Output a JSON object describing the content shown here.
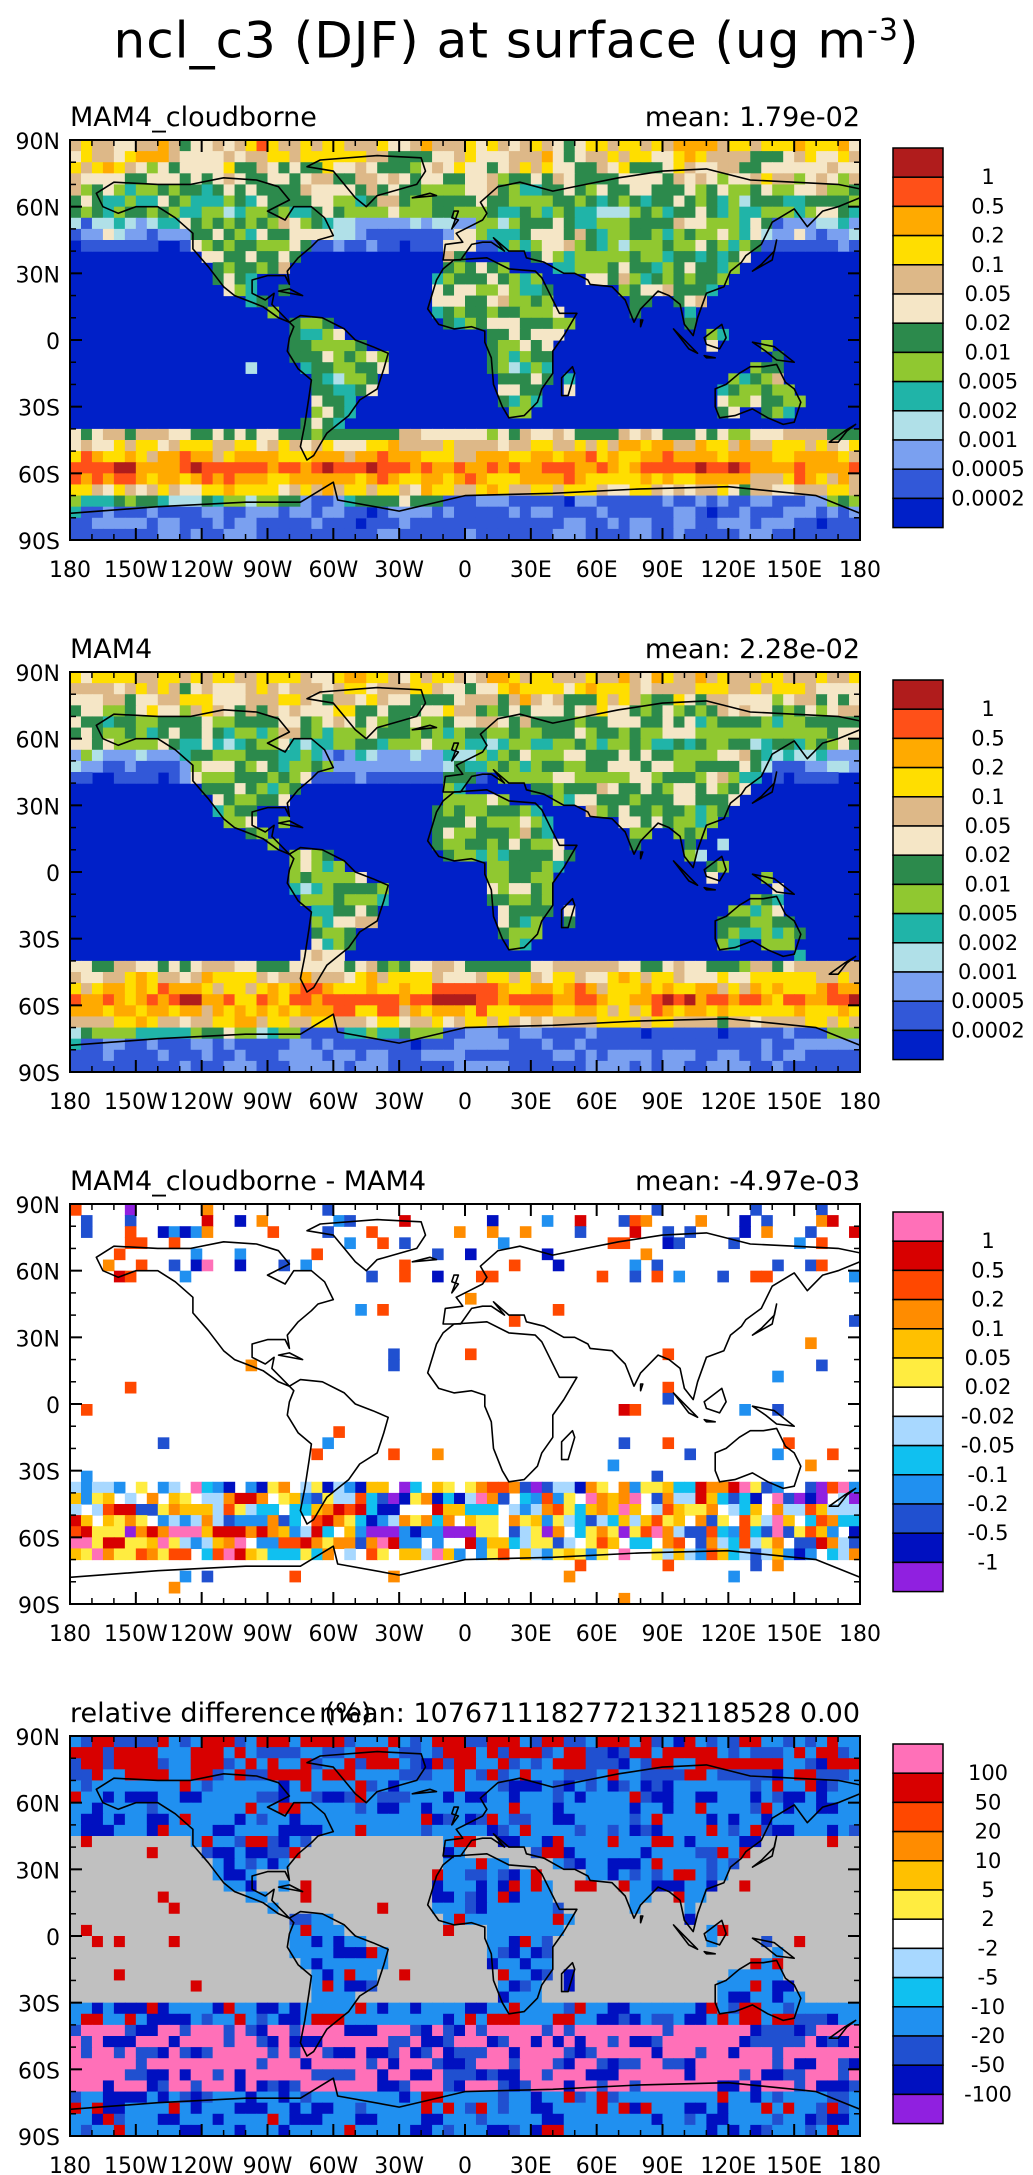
{
  "title": {
    "text": "ncl_c3 (DJF) at surface (ug m",
    "exponent": "-3",
    "close": ")"
  },
  "axes": {
    "lat_labels": [
      "90N",
      "60N",
      "30N",
      "0",
      "30S",
      "60S",
      "90S"
    ],
    "lon_labels": [
      "180",
      "150W",
      "120W",
      "90W",
      "60W",
      "30W",
      "0",
      "30E",
      "60E",
      "90E",
      "120E",
      "150E",
      "180"
    ]
  },
  "palettes": {
    "abs": [
      "#0020c8",
      "#3258d8",
      "#7aa0f0",
      "#b0e0e8",
      "#20b4a8",
      "#90c830",
      "#2c8a4c",
      "#f5e6c6",
      "#ddb888",
      "#ffde00",
      "#ffaa00",
      "#ff5018",
      "#b01c1c"
    ],
    "diff": [
      "#9020e0",
      "#0010c0",
      "#2050d0",
      "#2090f0",
      "#10c0f0",
      "#a8d8ff",
      "#ffffff",
      "#ffec40",
      "#ffc000",
      "#ff8c00",
      "#ff4800",
      "#d80000",
      "#ff70b8"
    ],
    "ocean_gray": "#c0c0c0"
  },
  "panels": [
    {
      "name": "MAM4_cloudborne",
      "mean": "mean: 1.79e-02",
      "type": "abs",
      "colorbar_labels": [
        "1",
        "0.5",
        "0.2",
        "0.1",
        "0.05",
        "0.02",
        "0.01",
        "0.005",
        "0.002",
        "0.001",
        "0.0005",
        "0.0002"
      ]
    },
    {
      "name": "MAM4",
      "mean": "mean: 2.28e-02",
      "type": "abs",
      "colorbar_labels": [
        "1",
        "0.5",
        "0.2",
        "0.1",
        "0.05",
        "0.02",
        "0.01",
        "0.005",
        "0.002",
        "0.001",
        "0.0005",
        "0.0002"
      ]
    },
    {
      "name": "MAM4_cloudborne - MAM4",
      "mean": "mean: -4.97e-03",
      "type": "diff",
      "colorbar_labels": [
        "1",
        "0.5",
        "0.2",
        "0.1",
        "0.05",
        "0.02",
        "-0.02",
        "-0.05",
        "-0.1",
        "-0.2",
        "-0.5",
        "-1"
      ]
    },
    {
      "name": "relative difference (%)",
      "mean": "mean: 1076711182772132118528 0.00",
      "type": "rel",
      "colorbar_labels": [
        "100",
        "50",
        "20",
        "10",
        "5",
        "2",
        "-2",
        "-5",
        "-10",
        "-20",
        "-50",
        "-100"
      ]
    }
  ]
}
